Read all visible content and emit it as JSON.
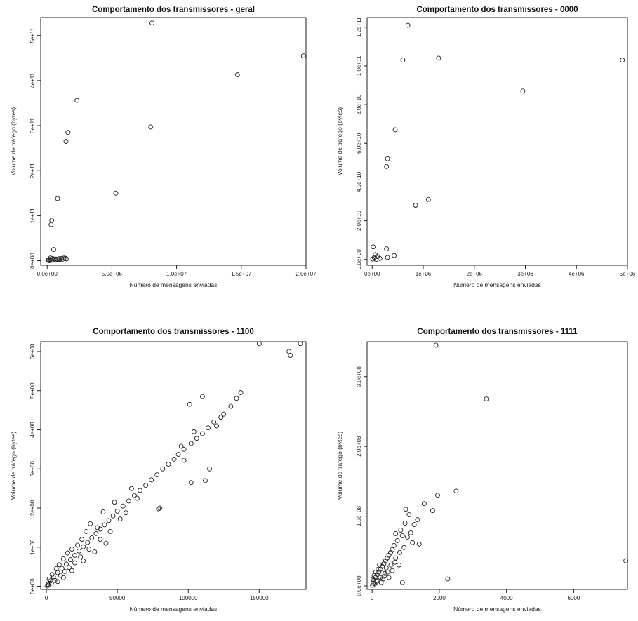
{
  "chart_data": [
    {
      "type": "scatter",
      "title": "Comportamento dos transmissores - geral",
      "xlabel": "Número de mensagens enviadas",
      "ylabel": "Volume de tráfego (bytes)",
      "xlim": [
        -500000,
        20000000
      ],
      "ylim": [
        -10000000000,
        540000000000
      ],
      "x_ticks": [
        0,
        5000000,
        10000000,
        15000000,
        20000000
      ],
      "x_tick_labels": [
        "0.0e+00",
        "5.0e+06",
        "1.0e+07",
        "1.5e+07",
        "2.0e+07"
      ],
      "y_ticks": [
        0,
        100000000000,
        200000000000,
        300000000000,
        400000000000,
        500000000000
      ],
      "y_tick_labels": [
        "0e+00",
        "1e+11",
        "2e+11",
        "3e+11",
        "4e+11",
        "5e+11"
      ],
      "grid": false,
      "points": [
        [
          8100000,
          528000000000
        ],
        [
          19800000,
          455000000000
        ],
        [
          14700000,
          413000000000
        ],
        [
          2300000,
          356000000000
        ],
        [
          8000000,
          297000000000
        ],
        [
          1600000,
          285000000000
        ],
        [
          1450000,
          265000000000
        ],
        [
          5300000,
          150000000000
        ],
        [
          800000,
          138000000000
        ],
        [
          350000,
          90000000000
        ],
        [
          300000,
          80000000000
        ],
        [
          500000,
          25000000000
        ],
        [
          100000,
          2000000000
        ],
        [
          200000,
          3000000000
        ],
        [
          300000,
          1000000000
        ],
        [
          400000,
          5000000000
        ],
        [
          600000,
          4000000000
        ],
        [
          700000,
          3500000000
        ],
        [
          800000,
          2500000000
        ],
        [
          900000,
          4500000000
        ],
        [
          1000000,
          3000000000
        ],
        [
          1100000,
          5000000000
        ],
        [
          1200000,
          3500000000
        ],
        [
          1300000,
          6000000000
        ],
        [
          1400000,
          5500000000
        ],
        [
          1500000,
          4000000000
        ],
        [
          50000,
          1000000000
        ],
        [
          150000,
          0
        ],
        [
          250000,
          6000000000
        ],
        [
          450000,
          2000000000
        ],
        [
          650000,
          1500000000
        ],
        [
          950000,
          2000000000
        ]
      ]
    },
    {
      "type": "scatter",
      "title": "Comportamento dos transmissores - 0000",
      "xlabel": "Número de mensagens enviadas",
      "ylabel": "Volume de tráfego (bytes)",
      "xlim": [
        -100000,
        5000000
      ],
      "ylim": [
        -3000000000,
        125000000000
      ],
      "x_ticks": [
        0,
        1000000,
        2000000,
        3000000,
        4000000,
        5000000
      ],
      "x_tick_labels": [
        "0e+00",
        "1e+06",
        "2e+06",
        "3e+06",
        "4e+06",
        "5e+06"
      ],
      "y_ticks": [
        0,
        20000000000,
        40000000000,
        60000000000,
        80000000000,
        100000000000,
        120000000000
      ],
      "y_tick_labels": [
        "0.0e+00",
        "2.0e+10",
        "4.0e+10",
        "6.0e+10",
        "8.0e+10",
        "1.0e+11",
        "1.2e+11"
      ],
      "grid": false,
      "points": [
        [
          700000,
          121000000000
        ],
        [
          600000,
          103000000000
        ],
        [
          1300000,
          104000000000
        ],
        [
          4900000,
          103000000000
        ],
        [
          2950000,
          87000000000
        ],
        [
          450000,
          67000000000
        ],
        [
          300000,
          52000000000
        ],
        [
          280000,
          48000000000
        ],
        [
          1100000,
          31000000000
        ],
        [
          850000,
          28000000000
        ],
        [
          20000,
          6500000000
        ],
        [
          280000,
          5500000000
        ],
        [
          40000,
          1000000000
        ],
        [
          100000,
          1500000000
        ],
        [
          80000,
          0
        ],
        [
          150000,
          500000000
        ],
        [
          300000,
          1000000000
        ],
        [
          430000,
          2000000000
        ],
        [
          10000,
          200000000
        ],
        [
          60000,
          2500000000
        ]
      ]
    },
    {
      "type": "scatter",
      "title": "Comportamento dos transmissores - 1100",
      "xlabel": "Número de mensagens enviadas",
      "ylabel": "Volume de tráfego (bytes)",
      "xlim": [
        -4000,
        183000
      ],
      "ylim": [
        -8000000,
        625000000
      ],
      "x_ticks": [
        0,
        50000,
        100000,
        150000
      ],
      "x_tick_labels": [
        "0",
        "50000",
        "100000",
        "150000"
      ],
      "y_ticks": [
        0,
        100000000,
        200000000,
        300000000,
        400000000,
        500000000,
        600000000
      ],
      "y_tick_labels": [
        "0e+00",
        "1e+08",
        "2e+08",
        "3e+08",
        "4e+08",
        "5e+08",
        "6e+08"
      ],
      "grid": false,
      "points": [
        [
          150000,
          620000000
        ],
        [
          179000,
          620000000
        ],
        [
          171000,
          600000000
        ],
        [
          172000,
          590000000
        ],
        [
          110000,
          485000000
        ],
        [
          101000,
          465000000
        ],
        [
          137000,
          495000000
        ],
        [
          134000,
          480000000
        ],
        [
          130000,
          460000000
        ],
        [
          125000,
          440000000
        ],
        [
          123000,
          432000000
        ],
        [
          118000,
          420000000
        ],
        [
          114000,
          405000000
        ],
        [
          110000,
          390000000
        ],
        [
          106000,
          378000000
        ],
        [
          102000,
          365000000
        ],
        [
          97000,
          350000000
        ],
        [
          93000,
          337000000
        ],
        [
          90000,
          325000000
        ],
        [
          86000,
          312000000
        ],
        [
          82000,
          300000000
        ],
        [
          78000,
          285000000
        ],
        [
          74000,
          272000000
        ],
        [
          70000,
          258000000
        ],
        [
          66000,
          245000000
        ],
        [
          62000,
          232000000
        ],
        [
          58000,
          218000000
        ],
        [
          54000,
          205000000
        ],
        [
          50000,
          192000000
        ],
        [
          47000,
          180000000
        ],
        [
          44000,
          168000000
        ],
        [
          41000,
          157000000
        ],
        [
          38000,
          146000000
        ],
        [
          35000,
          135000000
        ],
        [
          32000,
          124000000
        ],
        [
          29000,
          112000000
        ],
        [
          26000,
          101000000
        ],
        [
          23000,
          90000000
        ],
        [
          20000,
          79000000
        ],
        [
          17000,
          68000000
        ],
        [
          14000,
          57000000
        ],
        [
          11000,
          46000000
        ],
        [
          8000,
          35000000
        ],
        [
          5000,
          24000000
        ],
        [
          3000,
          14000000
        ],
        [
          1000,
          5000000
        ],
        [
          500,
          1000000
        ],
        [
          112000,
          270000000
        ],
        [
          102000,
          265000000
        ],
        [
          115000,
          300000000
        ],
        [
          97000,
          322000000
        ],
        [
          80000,
          200000000
        ],
        [
          79000,
          198000000
        ],
        [
          95000,
          358000000
        ],
        [
          104000,
          395000000
        ],
        [
          120000,
          410000000
        ],
        [
          60000,
          250000000
        ],
        [
          48000,
          215000000
        ],
        [
          40000,
          190000000
        ],
        [
          36000,
          150000000
        ],
        [
          31000,
          160000000
        ],
        [
          28000,
          140000000
        ],
        [
          25000,
          120000000
        ],
        [
          22000,
          105000000
        ],
        [
          18000,
          95000000
        ],
        [
          15000,
          85000000
        ],
        [
          12000,
          70000000
        ],
        [
          9000,
          55000000
        ],
        [
          7000,
          45000000
        ],
        [
          4000,
          30000000
        ],
        [
          2000,
          18000000
        ],
        [
          45000,
          140000000
        ],
        [
          38000,
          120000000
        ],
        [
          30000,
          95000000
        ],
        [
          24000,
          75000000
        ],
        [
          20000,
          60000000
        ],
        [
          16000,
          48000000
        ],
        [
          13000,
          38000000
        ],
        [
          10000,
          28000000
        ],
        [
          6000,
          15000000
        ],
        [
          3500,
          8000000
        ],
        [
          1500,
          3000000
        ],
        [
          8000,
          12000000
        ],
        [
          12000,
          22000000
        ],
        [
          18000,
          40000000
        ],
        [
          26000,
          65000000
        ],
        [
          34000,
          88000000
        ],
        [
          42000,
          110000000
        ],
        [
          52000,
          172000000
        ],
        [
          56000,
          188000000
        ],
        [
          64000,
          225000000
        ]
      ]
    },
    {
      "type": "scatter",
      "title": "Comportamento dos transmissores - 1111",
      "xlabel": "Número de mensagens enviadas",
      "ylabel": "Volume de tráfego (bytes)",
      "xlim": [
        -150,
        7600
      ],
      "ylim": [
        -5000000,
        350000000
      ],
      "x_ticks": [
        0,
        2000,
        4000,
        6000
      ],
      "x_tick_labels": [
        "0",
        "2000",
        "4000",
        "6000"
      ],
      "y_ticks": [
        0,
        100000000,
        200000000,
        300000000
      ],
      "y_tick_labels": [
        "0.0e+00",
        "1.0e+08",
        "2.0e+08",
        "3.0e+08"
      ],
      "grid": false,
      "points": [
        [
          1900,
          345000000
        ],
        [
          3400,
          268000000
        ],
        [
          2500,
          136000000
        ],
        [
          7550,
          36000000
        ],
        [
          1950,
          130000000
        ],
        [
          1550,
          118000000
        ],
        [
          1800,
          108000000
        ],
        [
          1000,
          110000000
        ],
        [
          1100,
          102000000
        ],
        [
          1350,
          95000000
        ],
        [
          850,
          80000000
        ],
        [
          900,
          72000000
        ],
        [
          1400,
          60000000
        ],
        [
          700,
          75000000
        ],
        [
          750,
          65000000
        ],
        [
          650,
          58000000
        ],
        [
          600,
          52000000
        ],
        [
          550,
          48000000
        ],
        [
          500,
          44000000
        ],
        [
          450,
          40000000
        ],
        [
          400,
          36000000
        ],
        [
          350,
          32000000
        ],
        [
          300,
          28000000
        ],
        [
          250,
          24000000
        ],
        [
          200,
          20000000
        ],
        [
          150,
          16000000
        ],
        [
          100,
          12000000
        ],
        [
          50,
          8000000
        ],
        [
          30,
          4000000
        ],
        [
          10,
          1000000
        ],
        [
          2250,
          10000000
        ],
        [
          800,
          30000000
        ],
        [
          950,
          55000000
        ],
        [
          1050,
          70000000
        ],
        [
          600,
          22000000
        ],
        [
          500,
          12000000
        ],
        [
          420,
          26000000
        ],
        [
          380,
          18000000
        ],
        [
          320,
          10000000
        ],
        [
          270,
          5000000
        ],
        [
          220,
          30000000
        ],
        [
          180,
          24000000
        ],
        [
          130,
          6000000
        ],
        [
          80,
          3000000
        ],
        [
          60,
          15000000
        ],
        [
          20,
          9000000
        ],
        [
          700,
          40000000
        ],
        [
          820,
          48000000
        ],
        [
          1200,
          62000000
        ],
        [
          680,
          34000000
        ],
        [
          560,
          30000000
        ],
        [
          460,
          20000000
        ],
        [
          360,
          14000000
        ],
        [
          240,
          12000000
        ],
        [
          160,
          8000000
        ],
        [
          110,
          20000000
        ],
        [
          900,
          5000000
        ],
        [
          1250,
          88000000
        ],
        [
          1150,
          76000000
        ],
        [
          980,
          90000000
        ]
      ]
    }
  ]
}
